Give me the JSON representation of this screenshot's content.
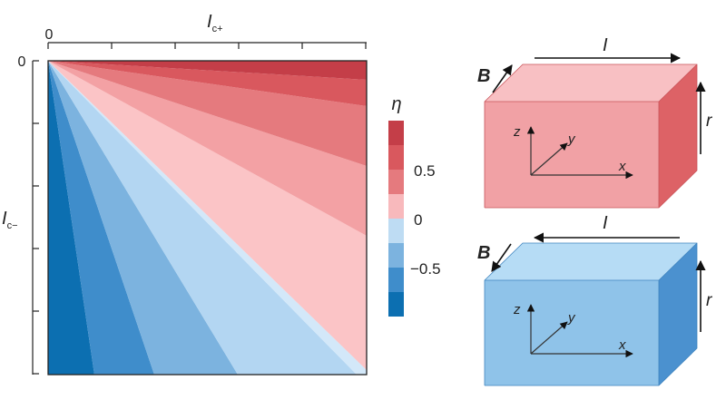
{
  "contour_plot": {
    "x_axis": {
      "label_main": "I",
      "label_sub": "c+",
      "origin_label": "0"
    },
    "y_axis": {
      "label_main": "I",
      "label_sub": "c−",
      "origin_label": "0"
    },
    "band_colors": [
      "#0c6fb1",
      "#3f8dcb",
      "#7cb3df",
      "#b3d6f2",
      "#d3e8f9",
      "#fbc4c6",
      "#f3a1a4",
      "#e57a7e",
      "#d9585e",
      "#c43e48"
    ]
  },
  "colorbar": {
    "title": "η",
    "tick_labels": [
      "0.5",
      "0",
      "−0.5"
    ],
    "colors": [
      "#c43e48",
      "#d9585e",
      "#e57a7e",
      "#f8b9bc",
      "#bedcf3",
      "#7cb3df",
      "#3f8dcb",
      "#0c6fb1"
    ]
  },
  "boxes": [
    {
      "face_color": "#f1a1a5",
      "top_color": "#f8c0c3",
      "side_color": "#dd6266",
      "field_label": "B",
      "current_label": "I",
      "radius_label": "r",
      "axis_labels": {
        "z": "z",
        "y": "y",
        "x": "x"
      },
      "current_direction": "right"
    },
    {
      "face_color": "#8fc3e9",
      "top_color": "#b6dcf5",
      "side_color": "#4b91cf",
      "field_label": "B",
      "current_label": "I",
      "radius_label": "r",
      "axis_labels": {
        "z": "z",
        "y": "y",
        "x": "x"
      },
      "current_direction": "left"
    }
  ]
}
